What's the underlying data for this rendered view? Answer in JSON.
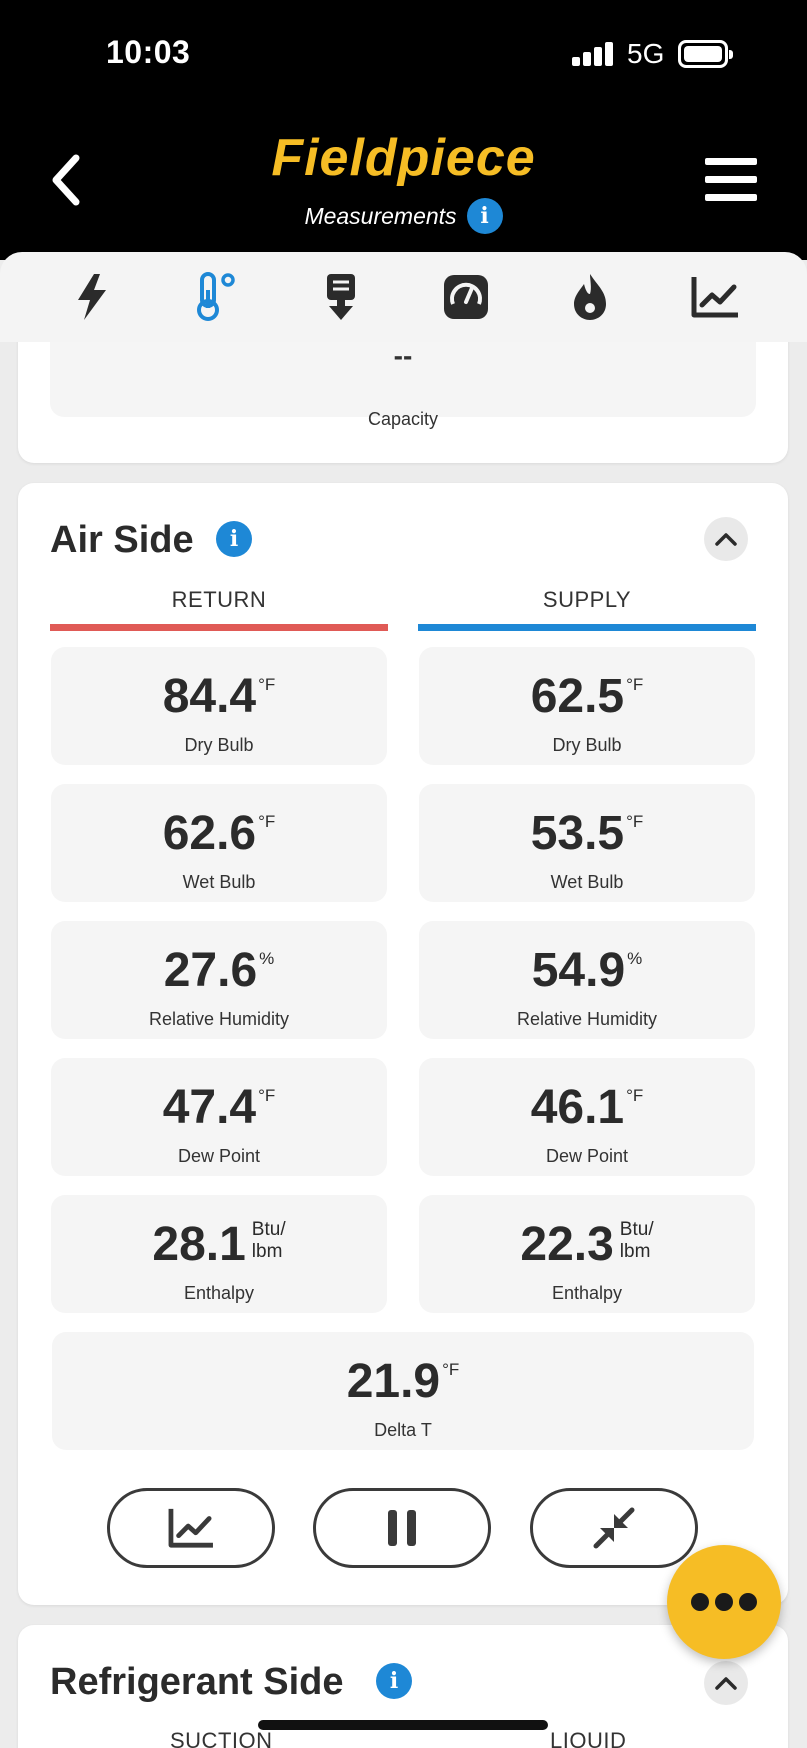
{
  "status_bar": {
    "time": "10:03",
    "network": "5G"
  },
  "header": {
    "brand": "Fieldpiece",
    "subtitle": "Measurements"
  },
  "tabs": [
    {
      "name": "electrical",
      "icon": "lightning-icon"
    },
    {
      "name": "temperature",
      "icon": "thermometer-icon",
      "active": true
    },
    {
      "name": "airflow",
      "icon": "download-icon"
    },
    {
      "name": "pressure",
      "icon": "gauge-icon"
    },
    {
      "name": "refrigerant",
      "icon": "flame-icon"
    },
    {
      "name": "charts",
      "icon": "chart-icon"
    }
  ],
  "capacity": {
    "value": "--",
    "label": "Capacity"
  },
  "air_side": {
    "title": "Air Side",
    "return_label": "RETURN",
    "supply_label": "SUPPLY",
    "return_color": "#e05a56",
    "supply_color": "#1e88d6",
    "return": {
      "dry_bulb": {
        "value": "84.4",
        "unit": "°F",
        "label": "Dry Bulb"
      },
      "wet_bulb": {
        "value": "62.6",
        "unit": "°F",
        "label": "Wet Bulb"
      },
      "rh": {
        "value": "27.6",
        "unit": "%",
        "label": "Relative Humidity"
      },
      "dew_point": {
        "value": "47.4",
        "unit": "°F",
        "label": "Dew Point"
      },
      "enthalpy": {
        "value": "28.1",
        "unit_top": "Btu/",
        "unit_bottom": "lbm",
        "label": "Enthalpy"
      }
    },
    "supply": {
      "dry_bulb": {
        "value": "62.5",
        "unit": "°F",
        "label": "Dry Bulb"
      },
      "wet_bulb": {
        "value": "53.5",
        "unit": "°F",
        "label": "Wet Bulb"
      },
      "rh": {
        "value": "54.9",
        "unit": "%",
        "label": "Relative Humidity"
      },
      "dew_point": {
        "value": "46.1",
        "unit": "°F",
        "label": "Dew Point"
      },
      "enthalpy": {
        "value": "22.3",
        "unit_top": "Btu/",
        "unit_bottom": "lbm",
        "label": "Enthalpy"
      }
    },
    "delta_t": {
      "value": "21.9",
      "unit": "°F",
      "label": "Delta T"
    }
  },
  "refrigerant_side": {
    "title": "Refrigerant Side",
    "suction_label": "SUCTION",
    "liquid_label": "LIQUID"
  }
}
